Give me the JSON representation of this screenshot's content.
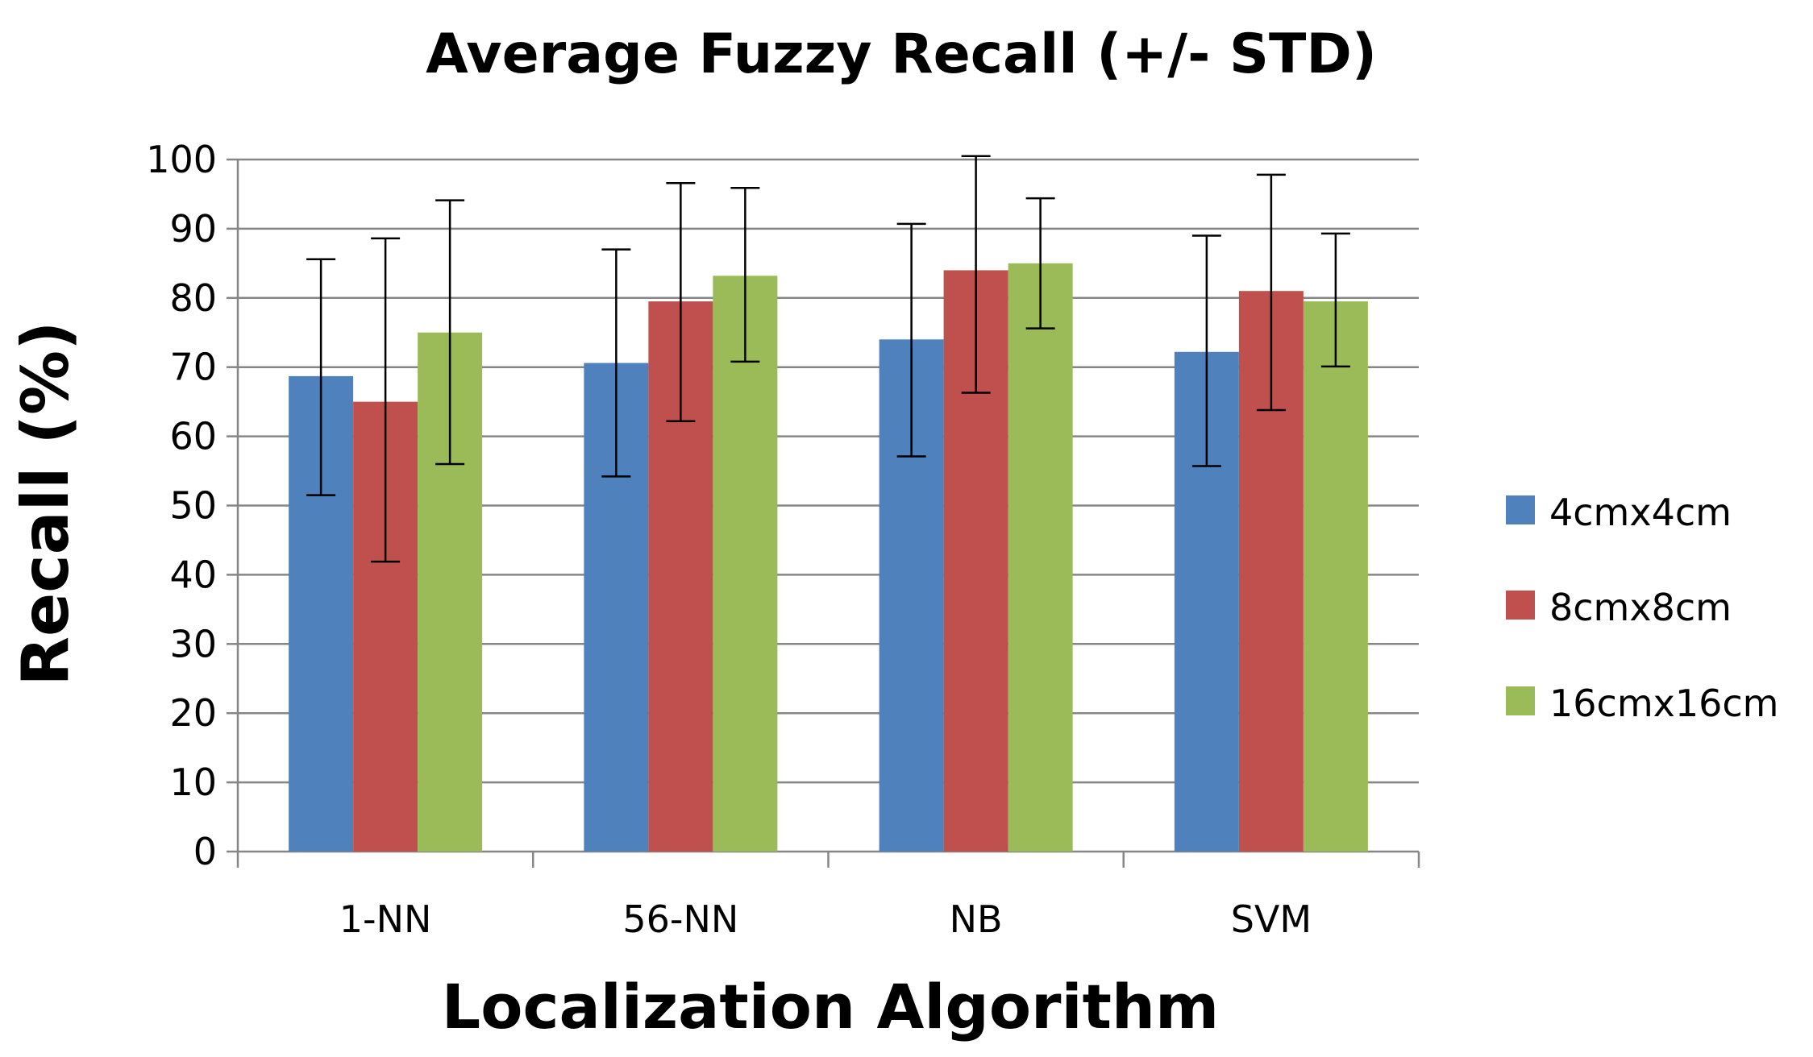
{
  "chart_data": {
    "type": "bar",
    "title": "Average Fuzzy Recall (+/- STD)",
    "xlabel": "Localization Algorithm",
    "ylabel": "Recall (%)",
    "ylim": [
      0,
      100
    ],
    "yticks": [
      0,
      10,
      20,
      30,
      40,
      50,
      60,
      70,
      80,
      90,
      100
    ],
    "ytick_labels": [
      "0",
      "10",
      "20",
      "30",
      "40",
      "50",
      "60",
      "70",
      "80",
      "90",
      "100"
    ],
    "grid": true,
    "legend_position": "right",
    "categories": [
      "1-NN",
      "56-NN",
      "NB",
      "SVM"
    ],
    "series": [
      {
        "name": "4cmx4cm",
        "color": "#4F81BD",
        "values": [
          68.7,
          70.6,
          74.0,
          72.2
        ],
        "error_low": [
          51.5,
          54.2,
          57.1,
          55.7
        ],
        "error_high": [
          85.6,
          87.0,
          90.7,
          89.0
        ]
      },
      {
        "name": "8cmx8cm",
        "color": "#C0504D",
        "values": [
          65.0,
          79.5,
          84.0,
          81.0
        ],
        "error_low": [
          41.9,
          62.2,
          66.3,
          63.8
        ],
        "error_high": [
          88.6,
          96.6,
          100.5,
          97.8
        ]
      },
      {
        "name": "16cmx16cm",
        "color": "#9BBB59",
        "values": [
          75.0,
          83.2,
          85.0,
          79.5
        ],
        "error_low": [
          56.0,
          70.8,
          75.6,
          70.1
        ],
        "error_high": [
          94.1,
          95.9,
          94.4,
          89.3
        ]
      }
    ],
    "gridline_color": "#868686",
    "axis_color": "#868686",
    "errorbar_color": "#000000"
  }
}
